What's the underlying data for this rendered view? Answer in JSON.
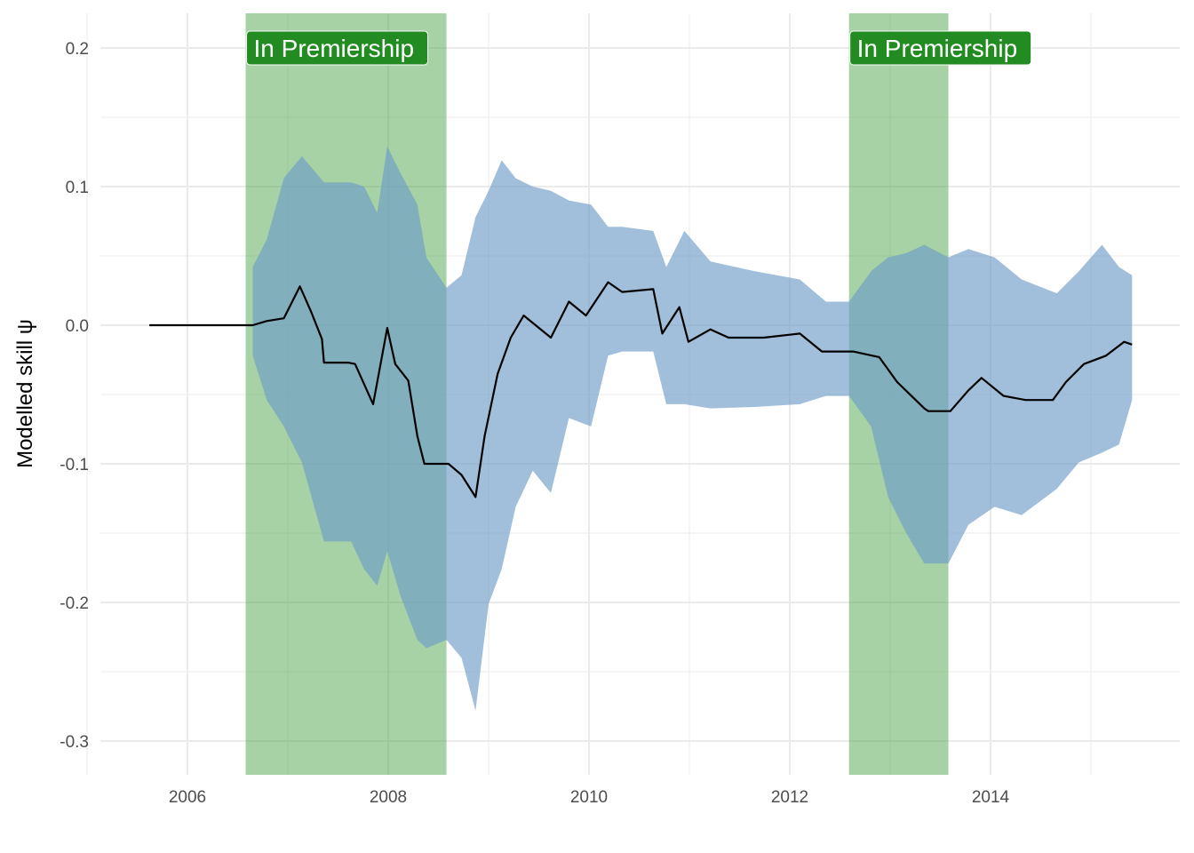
{
  "chart_data": {
    "type": "line",
    "title": "",
    "xlabel": "",
    "ylabel": "Modelled skill ψ",
    "xlim": [
      2005.13,
      2015.88
    ],
    "ylim": [
      -0.324,
      0.225
    ],
    "grid": true,
    "x_ticks": [
      "2006",
      "2008",
      "2010",
      "2012",
      "2014"
    ],
    "x_tick_values": [
      2006,
      2008,
      2010,
      2012,
      2014
    ],
    "y_ticks": [
      "0.2",
      "0.1",
      "0.0",
      "-0.1",
      "-0.2",
      "-0.3"
    ],
    "y_tick_values": [
      0.2,
      0.1,
      0.0,
      -0.1,
      -0.2,
      -0.3
    ],
    "colors": {
      "band": "#9dbad8",
      "line": "#000000",
      "region": "#4ea64e",
      "label_bg": "#228b22",
      "label_text": "#ffffff"
    },
    "regions": [
      {
        "label": "In Premiership",
        "start": 2006.58,
        "end": 2008.58
      },
      {
        "label": "In Premiership",
        "start": 2012.59,
        "end": 2013.58
      }
    ],
    "series": [
      {
        "x": [
          2005.62,
          2006.65,
          2006.79,
          2006.96,
          2007.12,
          2007.23,
          2007.34,
          2007.36,
          2007.6,
          2007.67,
          2007.85,
          2007.99,
          2008.07,
          2008.2,
          2008.29,
          2008.36,
          2008.6,
          2008.73,
          2008.87,
          2008.96,
          2009.09,
          2009.22,
          2009.35,
          2009.62,
          2009.8,
          2009.97,
          2010.19,
          2010.33,
          2010.64,
          2010.73,
          2010.9,
          2010.99,
          2011.21,
          2011.39,
          2011.74,
          2012.1,
          2012.32,
          2012.63,
          2012.89,
          2013.07,
          2013.34,
          2013.38,
          2013.6,
          2013.78,
          2013.91,
          2014.13,
          2014.35,
          2014.62,
          2014.75,
          2014.93,
          2015.15,
          2015.33,
          2015.41
        ],
        "y": [
          0,
          0,
          0.003,
          0.005,
          0.028,
          0.01,
          -0.01,
          -0.027,
          -0.027,
          -0.028,
          -0.057,
          -0.002,
          -0.028,
          -0.04,
          -0.08,
          -0.1,
          -0.1,
          -0.108,
          -0.124,
          -0.08,
          -0.035,
          -0.009,
          0.007,
          -0.009,
          0.017,
          0.007,
          0.031,
          0.024,
          0.026,
          -0.006,
          0.013,
          -0.012,
          -0.003,
          -0.009,
          -0.009,
          -0.006,
          -0.019,
          -0.019,
          -0.023,
          -0.041,
          -0.06,
          -0.062,
          -0.062,
          -0.047,
          -0.038,
          -0.051,
          -0.054,
          -0.054,
          -0.041,
          -0.028,
          -0.022,
          -0.012,
          -0.014
        ]
      }
    ],
    "band": {
      "x": [
        2006.65,
        2006.79,
        2006.96,
        2007.14,
        2007.36,
        2007.63,
        2007.76,
        2007.89,
        2007.99,
        2008.12,
        2008.29,
        2008.38,
        2008.58,
        2008.73,
        2008.87,
        2009.0,
        2009.13,
        2009.27,
        2009.44,
        2009.62,
        2009.8,
        2010.02,
        2010.19,
        2010.33,
        2010.64,
        2010.77,
        2010.95,
        2011.21,
        2011.65,
        2012.1,
        2012.36,
        2012.59,
        2012.81,
        2012.98,
        2013.16,
        2013.34,
        2013.58,
        2013.78,
        2014.04,
        2014.31,
        2014.66,
        2014.88,
        2015.11,
        2015.28,
        2015.41
      ],
      "upper": [
        0.042,
        0.062,
        0.106,
        0.122,
        0.103,
        0.103,
        0.1,
        0.081,
        0.129,
        0.11,
        0.087,
        0.049,
        0.027,
        0.036,
        0.078,
        0.097,
        0.119,
        0.106,
        0.1,
        0.097,
        0.09,
        0.087,
        0.071,
        0.071,
        0.068,
        0.042,
        0.068,
        0.046,
        0.039,
        0.033,
        0.017,
        0.017,
        0.039,
        0.049,
        0.052,
        0.058,
        0.049,
        0.055,
        0.049,
        0.033,
        0.023,
        0.039,
        0.058,
        0.042,
        0.036
      ],
      "lower": [
        -0.022,
        -0.054,
        -0.073,
        -0.099,
        -0.156,
        -0.156,
        -0.176,
        -0.188,
        -0.163,
        -0.195,
        -0.227,
        -0.233,
        -0.227,
        -0.24,
        -0.278,
        -0.201,
        -0.176,
        -0.131,
        -0.105,
        -0.121,
        -0.067,
        -0.073,
        -0.022,
        -0.019,
        -0.019,
        -0.057,
        -0.057,
        -0.06,
        -0.059,
        -0.057,
        -0.051,
        -0.051,
        -0.073,
        -0.124,
        -0.15,
        -0.172,
        -0.172,
        -0.144,
        -0.131,
        -0.137,
        -0.118,
        -0.099,
        -0.092,
        -0.086,
        -0.054
      ]
    }
  }
}
